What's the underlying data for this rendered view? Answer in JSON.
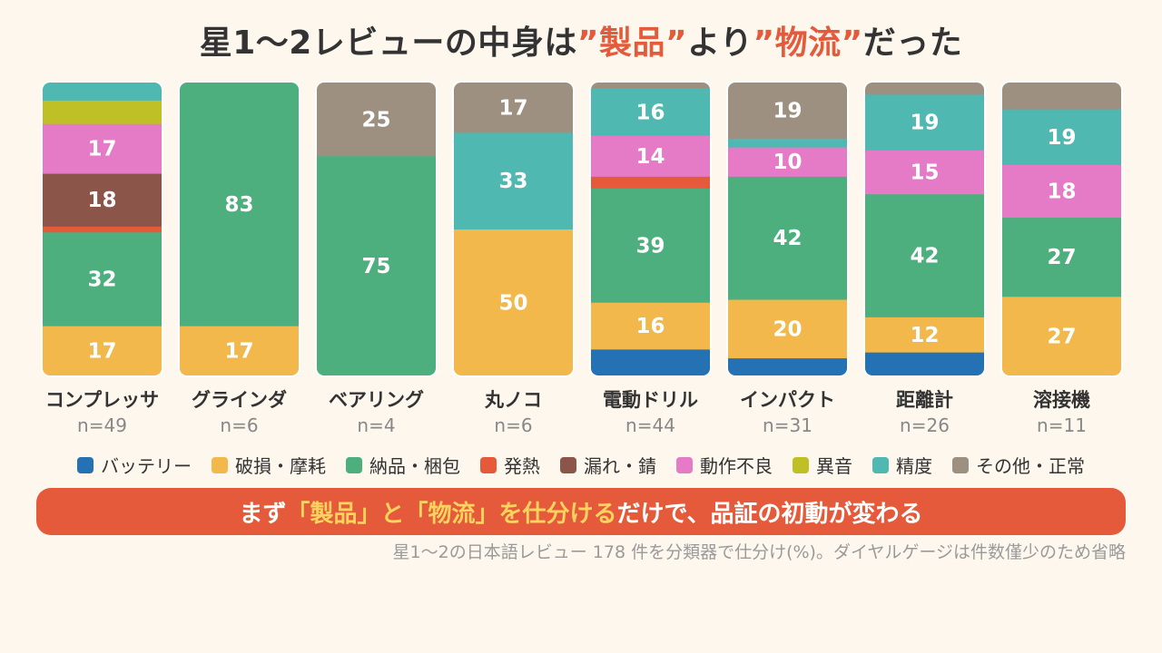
{
  "title": {
    "part1": "星1〜2レビューの中身は",
    "hl1": "”製品”",
    "part2": "より",
    "hl2": "”物流”",
    "part3": "だった"
  },
  "chart_data": {
    "type": "bar",
    "stacked": true,
    "percent": true,
    "categories": [
      "コンプレッサ",
      "グラインダ",
      "ベアリング",
      "丸ノコ",
      "電動ドリル",
      "インパクト",
      "距離計",
      "溶接機"
    ],
    "sample_sizes": [
      "n=49",
      "n=6",
      "n=4",
      "n=6",
      "n=44",
      "n=31",
      "n=26",
      "n=11"
    ],
    "series": [
      {
        "name": "バッテリー",
        "color": "#2471b3",
        "values": [
          0,
          0,
          0,
          0,
          9,
          6,
          8,
          0
        ]
      },
      {
        "name": "破損・摩耗",
        "color": "#f2b84b",
        "values": [
          17,
          17,
          0,
          50,
          16,
          20,
          12,
          27
        ]
      },
      {
        "name": "納品・梱包",
        "color": "#4caf7d",
        "values": [
          32,
          83,
          75,
          0,
          39,
          42,
          42,
          27
        ]
      },
      {
        "name": "発熱",
        "color": "#e55a3a",
        "values": [
          2,
          0,
          0,
          0,
          4,
          0,
          0,
          0
        ]
      },
      {
        "name": "漏れ・錆",
        "color": "#8c5549",
        "values": [
          18,
          0,
          0,
          0,
          0,
          0,
          0,
          0
        ]
      },
      {
        "name": "動作不良",
        "color": "#e57ac6",
        "values": [
          17,
          0,
          0,
          0,
          14,
          10,
          15,
          18
        ]
      },
      {
        "name": "異音",
        "color": "#bfbf26",
        "values": [
          8,
          0,
          0,
          0,
          0,
          0,
          0,
          0
        ]
      },
      {
        "name": "精度",
        "color": "#4fb8b0",
        "values": [
          6,
          0,
          0,
          33,
          16,
          3,
          19,
          19
        ]
      },
      {
        "name": "その他・正常",
        "color": "#9e9080",
        "values": [
          0,
          0,
          25,
          17,
          2,
          19,
          4,
          9
        ]
      }
    ],
    "ylim": [
      0,
      100
    ],
    "label_min": 10
  },
  "banner": {
    "part1": "まず",
    "hl": "「製品」と「物流」を仕分ける",
    "part2": "だけで、品証の初動が変わる"
  },
  "footnote": "星1〜2の日本語レビュー 178 件を分類器で仕分け(%)。ダイヤルゲージは件数僅少のため省略"
}
